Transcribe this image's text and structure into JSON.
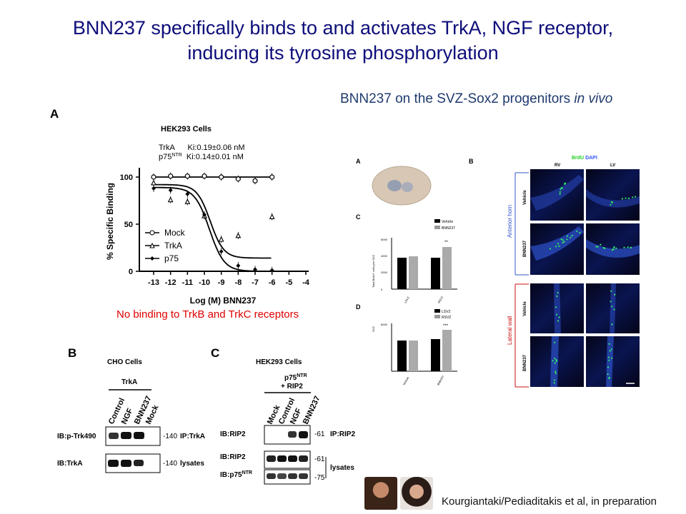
{
  "title_line1": "BNN237 specifically binds to and activates TrkA, NGF receptor,",
  "title_line2": "inducing its tyrosine phosphorylation",
  "subtitle_main": "BNN237 on the SVZ-Sox2 progenitors ",
  "subtitle_italic": "in vivo",
  "panel_A": {
    "label": "A",
    "cells": "HEK293 Cells",
    "ki_trka": "TrkA      Ki:0.19±0.06 nM",
    "ki_p75_pre": "p75",
    "ki_p75_sup": "NTR",
    "ki_p75_post": "  Ki:0.14±0.01 nM",
    "legend": [
      "Mock",
      "TrkA",
      "p75"
    ],
    "note": "No binding to TrkB and TrkC receptors"
  },
  "chart_data": {
    "type": "scatter",
    "title": "HEK293 Cells",
    "xlabel": "Log (M) BNN237",
    "ylabel": "% Specific Binding",
    "xlim": [
      -13,
      -4
    ],
    "ylim": [
      0,
      110
    ],
    "xticks": [
      "-13",
      "-12",
      "-11",
      "-10",
      "-9",
      "-8",
      "-7",
      "-6",
      "-5",
      "-4"
    ],
    "yticks": [
      "0",
      "50",
      "100"
    ],
    "series": [
      {
        "name": "Mock",
        "marker": "circle",
        "x": [
          -13,
          -12,
          -11,
          -10,
          -9,
          -8,
          -7,
          -6
        ],
        "y": [
          100,
          101,
          101,
          101,
          100,
          98,
          96,
          100
        ]
      },
      {
        "name": "TrkA",
        "marker": "triangle",
        "x": [
          -13,
          -12,
          -11,
          -10,
          -9,
          -8,
          -6
        ],
        "y": [
          94,
          76,
          74,
          59,
          34,
          38,
          58
        ]
      },
      {
        "name": "p75",
        "marker": "diamond",
        "x": [
          -13,
          -12,
          -11,
          -10,
          -9,
          -8,
          -7,
          -6
        ],
        "y": [
          88,
          86,
          82,
          60,
          21,
          6,
          2,
          1
        ]
      }
    ]
  },
  "panel_B": {
    "label": "B",
    "cells": "CHO Cells",
    "group": "TrkA",
    "lanes": [
      "Control",
      "NGF",
      "BNN237",
      "Mock"
    ],
    "rows": [
      "IB:p-Trk490",
      "IB:TrkA"
    ],
    "mw": [
      "-140",
      "-140"
    ],
    "right": [
      "IP:TrkA",
      "lysates"
    ]
  },
  "panel_C": {
    "label": "C",
    "cells": "HEK293 Cells",
    "group_pre": "p75",
    "group_sup": "NTR",
    "group_line2": "+ RIP2",
    "lanes": [
      "Mock",
      "Control",
      "NGF",
      "BNN237"
    ],
    "rows": [
      "IB:RIP2",
      "IB:RIP2",
      "IB:p75"
    ],
    "row3_sup": "NTR",
    "mw": [
      "-61",
      "-61",
      "-75"
    ],
    "right": [
      "IP:RIP2",
      "lysates"
    ]
  },
  "right_fig": {
    "label_A": "A",
    "label_B": "B",
    "label_C": "C",
    "label_D": "D",
    "legend_C": [
      "Vehicle",
      "BNN237"
    ],
    "legend_D": [
      "LSVZ",
      "RSVZ"
    ],
    "ylabel_C": "Total BrdU+ cells per SVZ",
    "ylabel_D": "SVZ",
    "ytick_C": [
      "6000",
      "4000",
      "2000",
      "0"
    ],
    "ytick_D": [
      "6000"
    ],
    "xcats_C": [
      "LSVZ",
      "RSVZ"
    ],
    "xcats_D": [
      "Vehicle",
      "BNN237"
    ],
    "sig_C": "**",
    "sig_D": "***",
    "stain_brdu": "BrdU",
    "stain_dapi": " DAPI",
    "col_rv": "RV",
    "col_lv": "LV",
    "region_1": "Anterior horn",
    "region_2": "Lateral wall",
    "rows": [
      "Vehicle",
      "BNN237",
      "Vehicle",
      "BNN237"
    ]
  },
  "footer": "Kourgiantaki/Pediaditakis et al, in preparation",
  "colors": {
    "title": "#0d0d7a",
    "note": "#e00000",
    "anterior": "#3355cc",
    "lateral": "#cc1111",
    "brdu": "#22cc22",
    "dapi": "#3355ff"
  }
}
